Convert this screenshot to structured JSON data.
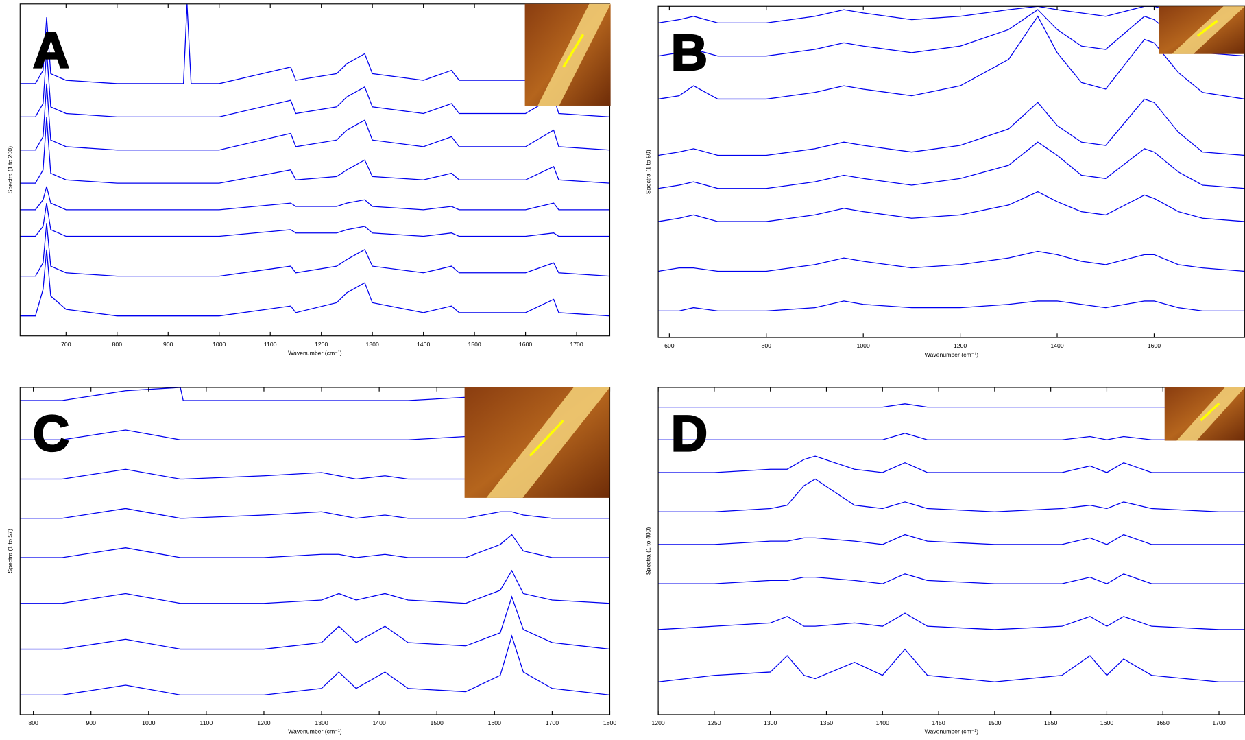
{
  "chart_data": [
    {
      "type": "line",
      "label": "A",
      "x_label": "Wavenumber (cm⁻¹)",
      "y_label": "Spectra (1 to 200)",
      "color": "#0000ee",
      "xlim": [
        610,
        1765
      ],
      "xticks": [
        700,
        800,
        900,
        1000,
        1100,
        1200,
        1300,
        1400,
        1500,
        1600,
        1700
      ],
      "ylim": [
        0,
        100
      ],
      "x": [
        610,
        640,
        655,
        662,
        670,
        700,
        800,
        930,
        937,
        945,
        1000,
        1140,
        1150,
        1230,
        1250,
        1285,
        1300,
        1400,
        1455,
        1470,
        1600,
        1655,
        1665,
        1765
      ],
      "series": [
        {
          "values": [
            76,
            76,
            80,
            96,
            79,
            77,
            76,
            76,
            100,
            76,
            76,
            81,
            77,
            79,
            82,
            85,
            79,
            77,
            80,
            77,
            77,
            82,
            77,
            76
          ]
        },
        {
          "values": [
            66,
            66,
            70,
            86,
            69,
            67,
            66,
            66,
            66,
            66,
            66,
            71,
            67,
            69,
            72,
            75,
            69,
            67,
            70,
            67,
            67,
            72,
            67,
            66
          ]
        },
        {
          "values": [
            56,
            56,
            60,
            76,
            59,
            57,
            56,
            56,
            56,
            56,
            56,
            61,
            57,
            59,
            62,
            65,
            59,
            57,
            60,
            57,
            57,
            62,
            57,
            56
          ]
        },
        {
          "values": [
            46,
            46,
            50,
            66,
            49,
            47,
            46,
            46,
            46,
            46,
            46,
            50,
            47,
            48,
            50,
            53,
            48,
            47,
            49,
            47,
            47,
            51,
            47,
            46
          ]
        },
        {
          "values": [
            38,
            38,
            41,
            45,
            40,
            38,
            38,
            38,
            38,
            38,
            38,
            40,
            39,
            39,
            40,
            41,
            39,
            38,
            39,
            38,
            38,
            40,
            38,
            38
          ]
        },
        {
          "values": [
            30,
            30,
            33,
            40,
            32,
            30,
            30,
            30,
            30,
            30,
            30,
            32,
            31,
            31,
            32,
            33,
            31,
            30,
            31,
            30,
            30,
            31,
            30,
            30
          ]
        },
        {
          "values": [
            18,
            18,
            22,
            34,
            21,
            19,
            18,
            18,
            18,
            18,
            18,
            21,
            19,
            21,
            23,
            26,
            21,
            19,
            21,
            19,
            19,
            22,
            19,
            18
          ]
        },
        {
          "values": [
            6,
            6,
            14,
            26,
            12,
            8,
            6,
            6,
            6,
            6,
            6,
            9,
            7,
            10,
            13,
            16,
            10,
            7,
            9,
            7,
            7,
            11,
            7,
            6
          ]
        }
      ]
    },
    {
      "type": "line",
      "label": "B",
      "x_label": "Wavenumber (cm⁻¹)",
      "y_label": "Spectra (1 to 50)",
      "color": "#0000ee",
      "xlim": [
        577,
        1787
      ],
      "xticks": [
        600,
        800,
        1000,
        1200,
        1400,
        1600
      ],
      "ylim": [
        0,
        100
      ],
      "x": [
        577,
        620,
        650,
        700,
        800,
        900,
        960,
        1000,
        1100,
        1200,
        1300,
        1360,
        1400,
        1450,
        1500,
        1580,
        1600,
        1650,
        1700,
        1787
      ],
      "series": [
        {
          "values": [
            95,
            96,
            97,
            95,
            95,
            97,
            99,
            98,
            96,
            97,
            99,
            100,
            99,
            98,
            97,
            100,
            100,
            98,
            96,
            95
          ]
        },
        {
          "values": [
            85,
            86,
            87,
            85,
            85,
            87,
            89,
            88,
            86,
            88,
            93,
            99,
            93,
            88,
            87,
            97,
            96,
            90,
            86,
            85
          ]
        },
        {
          "values": [
            72,
            73,
            76,
            72,
            72,
            74,
            76,
            75,
            73,
            76,
            84,
            97,
            86,
            77,
            75,
            90,
            89,
            80,
            74,
            72
          ]
        },
        {
          "values": [
            55,
            56,
            57,
            55,
            55,
            57,
            59,
            58,
            56,
            58,
            63,
            71,
            64,
            59,
            58,
            72,
            71,
            62,
            56,
            55
          ]
        },
        {
          "values": [
            45,
            46,
            47,
            45,
            45,
            47,
            49,
            48,
            46,
            48,
            52,
            59,
            55,
            49,
            48,
            57,
            56,
            50,
            46,
            45
          ]
        },
        {
          "values": [
            35,
            36,
            37,
            35,
            35,
            37,
            39,
            38,
            36,
            37,
            40,
            44,
            41,
            38,
            37,
            43,
            42,
            38,
            36,
            35
          ]
        },
        {
          "values": [
            20,
            21,
            21,
            20,
            20,
            22,
            24,
            23,
            21,
            22,
            24,
            26,
            25,
            23,
            22,
            25,
            25,
            22,
            21,
            20
          ]
        },
        {
          "values": [
            8,
            8,
            9,
            8,
            8,
            9,
            11,
            10,
            9,
            9,
            10,
            11,
            11,
            10,
            9,
            11,
            11,
            9,
            8,
            8
          ]
        }
      ]
    },
    {
      "type": "line",
      "label": "C",
      "x_label": "Wavenumber (cm⁻¹)",
      "y_label": "Spectra (1 to 57)",
      "color": "#0000ee",
      "xlim": [
        777,
        1800
      ],
      "xticks": [
        800,
        900,
        1000,
        1100,
        1200,
        1300,
        1400,
        1500,
        1600,
        1700,
        1800
      ],
      "ylim": [
        0,
        100
      ],
      "x": [
        777,
        850,
        960,
        1055,
        1060,
        1200,
        1300,
        1330,
        1360,
        1410,
        1450,
        1550,
        1610,
        1630,
        1650,
        1700,
        1800
      ],
      "series": [
        {
          "values": [
            96,
            96,
            99,
            100,
            96,
            96,
            96,
            96,
            96,
            96,
            96,
            97,
            96,
            96,
            96,
            96,
            96
          ]
        },
        {
          "values": [
            84,
            84,
            87,
            84,
            84,
            84,
            84,
            84,
            84,
            84,
            84,
            85,
            84,
            84,
            84,
            84,
            84
          ]
        },
        {
          "values": [
            72,
            72,
            75,
            72,
            72,
            73,
            74,
            73,
            72,
            73,
            72,
            72,
            73,
            72,
            72,
            72,
            72
          ]
        },
        {
          "values": [
            60,
            60,
            63,
            60,
            60,
            61,
            62,
            61,
            60,
            61,
            60,
            60,
            62,
            62,
            61,
            60,
            60
          ]
        },
        {
          "values": [
            48,
            48,
            51,
            48,
            48,
            48,
            49,
            49,
            48,
            49,
            48,
            48,
            52,
            55,
            50,
            48,
            48
          ]
        },
        {
          "values": [
            34,
            34,
            37,
            34,
            34,
            34,
            35,
            37,
            35,
            37,
            35,
            34,
            38,
            44,
            37,
            35,
            34
          ]
        },
        {
          "values": [
            20,
            20,
            23,
            20,
            20,
            20,
            22,
            27,
            22,
            27,
            22,
            21,
            25,
            36,
            26,
            22,
            20
          ]
        },
        {
          "values": [
            6,
            6,
            9,
            6,
            6,
            6,
            8,
            13,
            8,
            13,
            8,
            7,
            12,
            24,
            13,
            8,
            6
          ]
        }
      ]
    },
    {
      "type": "line",
      "label": "D",
      "x_label": "Wavenumber (cm⁻¹)",
      "y_label": "Spectra (1 to 400)",
      "color": "#0000ee",
      "xlim": [
        1200,
        1723
      ],
      "xticks": [
        1200,
        1250,
        1300,
        1350,
        1400,
        1450,
        1500,
        1550,
        1600,
        1650,
        1700
      ],
      "ylim": [
        0,
        100
      ],
      "x": [
        1200,
        1250,
        1300,
        1315,
        1330,
        1340,
        1375,
        1400,
        1420,
        1440,
        1500,
        1560,
        1585,
        1600,
        1615,
        1640,
        1700,
        1723
      ],
      "series": [
        {
          "values": [
            94,
            94,
            94,
            94,
            94,
            94,
            94,
            94,
            95,
            94,
            94,
            94,
            94,
            94,
            94,
            94,
            94,
            94
          ]
        },
        {
          "values": [
            84,
            84,
            84,
            84,
            84,
            84,
            84,
            84,
            86,
            84,
            84,
            84,
            85,
            84,
            85,
            84,
            84,
            84
          ]
        },
        {
          "values": [
            74,
            74,
            75,
            75,
            78,
            79,
            75,
            74,
            77,
            74,
            74,
            74,
            76,
            74,
            77,
            74,
            74,
            74
          ]
        },
        {
          "values": [
            62,
            62,
            63,
            64,
            70,
            72,
            64,
            63,
            65,
            63,
            62,
            63,
            64,
            63,
            65,
            63,
            62,
            62
          ]
        },
        {
          "values": [
            52,
            52,
            53,
            53,
            54,
            54,
            53,
            52,
            55,
            53,
            52,
            52,
            54,
            52,
            55,
            52,
            52,
            52
          ]
        },
        {
          "values": [
            40,
            40,
            41,
            41,
            42,
            42,
            41,
            40,
            43,
            41,
            40,
            40,
            42,
            40,
            43,
            40,
            40,
            40
          ]
        },
        {
          "values": [
            26,
            27,
            28,
            30,
            27,
            27,
            28,
            27,
            31,
            27,
            26,
            27,
            30,
            27,
            30,
            27,
            26,
            26
          ]
        },
        {
          "values": [
            10,
            12,
            13,
            18,
            12,
            11,
            16,
            12,
            20,
            12,
            10,
            12,
            18,
            12,
            17,
            12,
            10,
            10
          ]
        }
      ]
    }
  ]
}
